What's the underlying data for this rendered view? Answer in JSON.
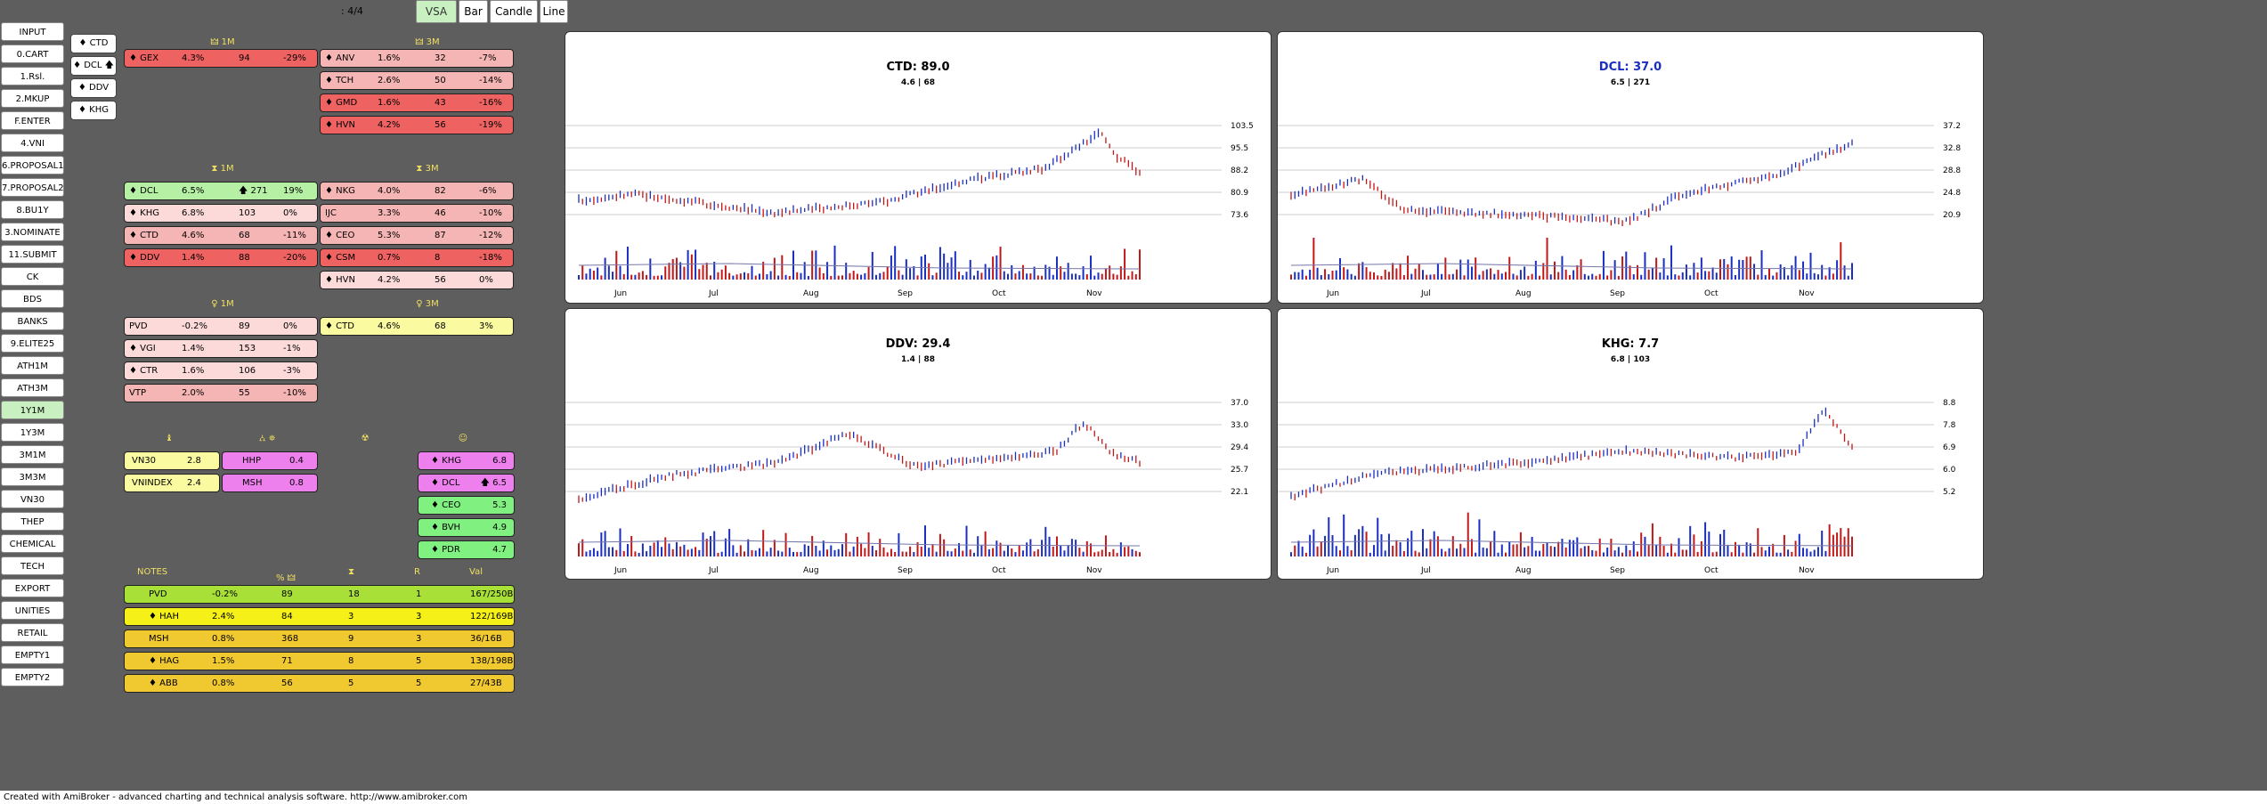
{
  "page_indicator": ": 4/4",
  "chart_type_buttons": [
    "VSA",
    "Bar",
    "Candle",
    "Line"
  ],
  "left_menu": [
    "INPUT",
    "0.CART",
    "1.Rsl.",
    "2.MKUP",
    "F.ENTER",
    "4.VNI",
    "6.PROPOSAL1",
    "7.PROPOSAL2",
    "8.BU1Y",
    "3.NOMINATE",
    "11.SUBMIT",
    "CK",
    "BDS",
    "BANKS",
    "9.ELITE25",
    "ATH1M",
    "ATH3M",
    "1Y1M",
    "1Y3M",
    "3M1M",
    "3M3M",
    "VN30",
    "THEP",
    "CHEMICAL",
    "TECH",
    "EXPORT",
    "UNITIES",
    "RETAIL",
    "EMPTY1",
    "EMPTY2"
  ],
  "ticker_buttons": [
    "♦ CTD",
    "♦ DCL 🡅",
    "♦ DDV",
    "♦ KHG"
  ],
  "section1": {
    "hdr_1m": "🜲 1M",
    "hdr_3m": "🜲 3M",
    "rows_1m": [
      [
        "♦ GEX",
        "4.3%",
        "94",
        "-29%"
      ]
    ],
    "rows_3m": [
      [
        "♦ ANV",
        "1.6%",
        "32",
        "-7%"
      ],
      [
        "♦ TCH",
        "2.6%",
        "50",
        "-14%"
      ],
      [
        "♦ GMD",
        "1.6%",
        "43",
        "-16%"
      ],
      [
        "♦ HVN",
        "4.2%",
        "56",
        "-19%"
      ]
    ]
  },
  "section2": {
    "hdr_1m": "⧗ 1M",
    "hdr_3m": "⧗ 3M",
    "rows_1m": [
      [
        "♦ DCL",
        "6.5%",
        "🡅 271",
        "19%"
      ],
      [
        "♦ KHG",
        "6.8%",
        "103",
        "0%"
      ],
      [
        "♦ CTD",
        "4.6%",
        "68",
        "-11%"
      ],
      [
        "♦ DDV",
        "1.4%",
        "88",
        "-20%"
      ]
    ],
    "rows_3m": [
      [
        "♦ NKG",
        "4.0%",
        "82",
        "-6%"
      ],
      [
        "IJC",
        "3.3%",
        "46",
        "-10%"
      ],
      [
        "♦ CEO",
        "5.3%",
        "87",
        "-12%"
      ],
      [
        "♦ CSM",
        "0.7%",
        "8",
        "-18%"
      ],
      [
        "♦ HVN",
        "4.2%",
        "56",
        "0%"
      ]
    ]
  },
  "section3": {
    "hdr_1m": "♀ 1M",
    "hdr_3m": "♀ 3M",
    "rows_1m": [
      [
        "PVD",
        "-0.2%",
        "89",
        "0%"
      ],
      [
        "♦ VGI",
        "1.4%",
        "153",
        "-1%"
      ],
      [
        "♦ CTR",
        "1.6%",
        "106",
        "-3%"
      ],
      [
        "VTP",
        "2.0%",
        "55",
        "-10%"
      ]
    ],
    "rows_3m": [
      [
        "♦ CTD",
        "4.6%",
        "68",
        "3%"
      ]
    ]
  },
  "section4": {
    "hdr_a": "♝",
    "hdr_b": "⛼ ⛯",
    "hdr_c": "☢",
    "hdr_d": "☺",
    "index": [
      [
        "VN30",
        "2.8"
      ],
      [
        "VNINDEX",
        "2.4"
      ]
    ],
    "mid": [
      [
        "HHP",
        "0.4"
      ],
      [
        "MSH",
        "0.8"
      ]
    ],
    "right": [
      [
        "♦ KHG",
        "6.8"
      ],
      [
        "♦ DCL",
        "🡅 6.5"
      ],
      [
        "♦ CEO",
        "5.3"
      ],
      [
        "♦ BVH",
        "4.9"
      ],
      [
        "♦ PDR",
        "4.7"
      ]
    ]
  },
  "notes": {
    "headers": [
      "NOTES",
      "% 🜲",
      "⧗",
      "R",
      "Val"
    ],
    "rows": [
      [
        "PVD",
        "-0.2%",
        "89",
        "18",
        "1",
        "167/250B"
      ],
      [
        "♦ HAH",
        "2.4%",
        "84",
        "3",
        "3",
        "122/169B"
      ],
      [
        "MSH",
        "0.8%",
        "368",
        "9",
        "3",
        "36/16B"
      ],
      [
        "♦ HAG",
        "1.5%",
        "71",
        "8",
        "5",
        "138/198B"
      ],
      [
        "♦ ABB",
        "0.8%",
        "56",
        "5",
        "5",
        "27/43B"
      ]
    ]
  },
  "colors": {
    "up_bar": "#1a2fc0",
    "down_bar": "#c01818",
    "ma_line": "#7777aa",
    "grid": "#bbbbbb",
    "select_green": "#c8f0c0"
  },
  "charts": [
    {
      "title": "CTD: 89.0",
      "subtitle": "4.6 | 68",
      "title_color": "#000000",
      "ylabels": [
        "103.5",
        "95.5",
        "88.2",
        "80.9",
        "73.6"
      ],
      "months": [
        "Jun",
        "Jul",
        "Aug",
        "Sep",
        "Oct",
        "Nov"
      ]
    },
    {
      "title": "DCL: 37.0",
      "subtitle": "6.5 | 271",
      "title_color": "#1a2fc0",
      "ylabels": [
        "37.2",
        "32.8",
        "28.8",
        "24.8",
        "20.9"
      ],
      "months": [
        "Jun",
        "Jul",
        "Aug",
        "Sep",
        "Oct",
        "Nov"
      ]
    },
    {
      "title": "DDV: 29.4",
      "subtitle": "1.4 | 88",
      "title_color": "#000000",
      "ylabels": [
        "37.0",
        "33.0",
        "29.4",
        "25.7",
        "22.1"
      ],
      "months": [
        "Jun",
        "Jul",
        "Aug",
        "Sep",
        "Oct",
        "Nov"
      ]
    },
    {
      "title": "KHG: 7.7",
      "subtitle": "6.8 | 103",
      "title_color": "#000000",
      "ylabels": [
        "8.8",
        "7.8",
        "6.9",
        "6.0",
        "5.2"
      ],
      "months": [
        "Jun",
        "Jul",
        "Aug",
        "Sep",
        "Oct",
        "Nov"
      ]
    }
  ],
  "footer": "Created with AmiBroker - advanced charting and technical analysis software. http://www.amibroker.com"
}
